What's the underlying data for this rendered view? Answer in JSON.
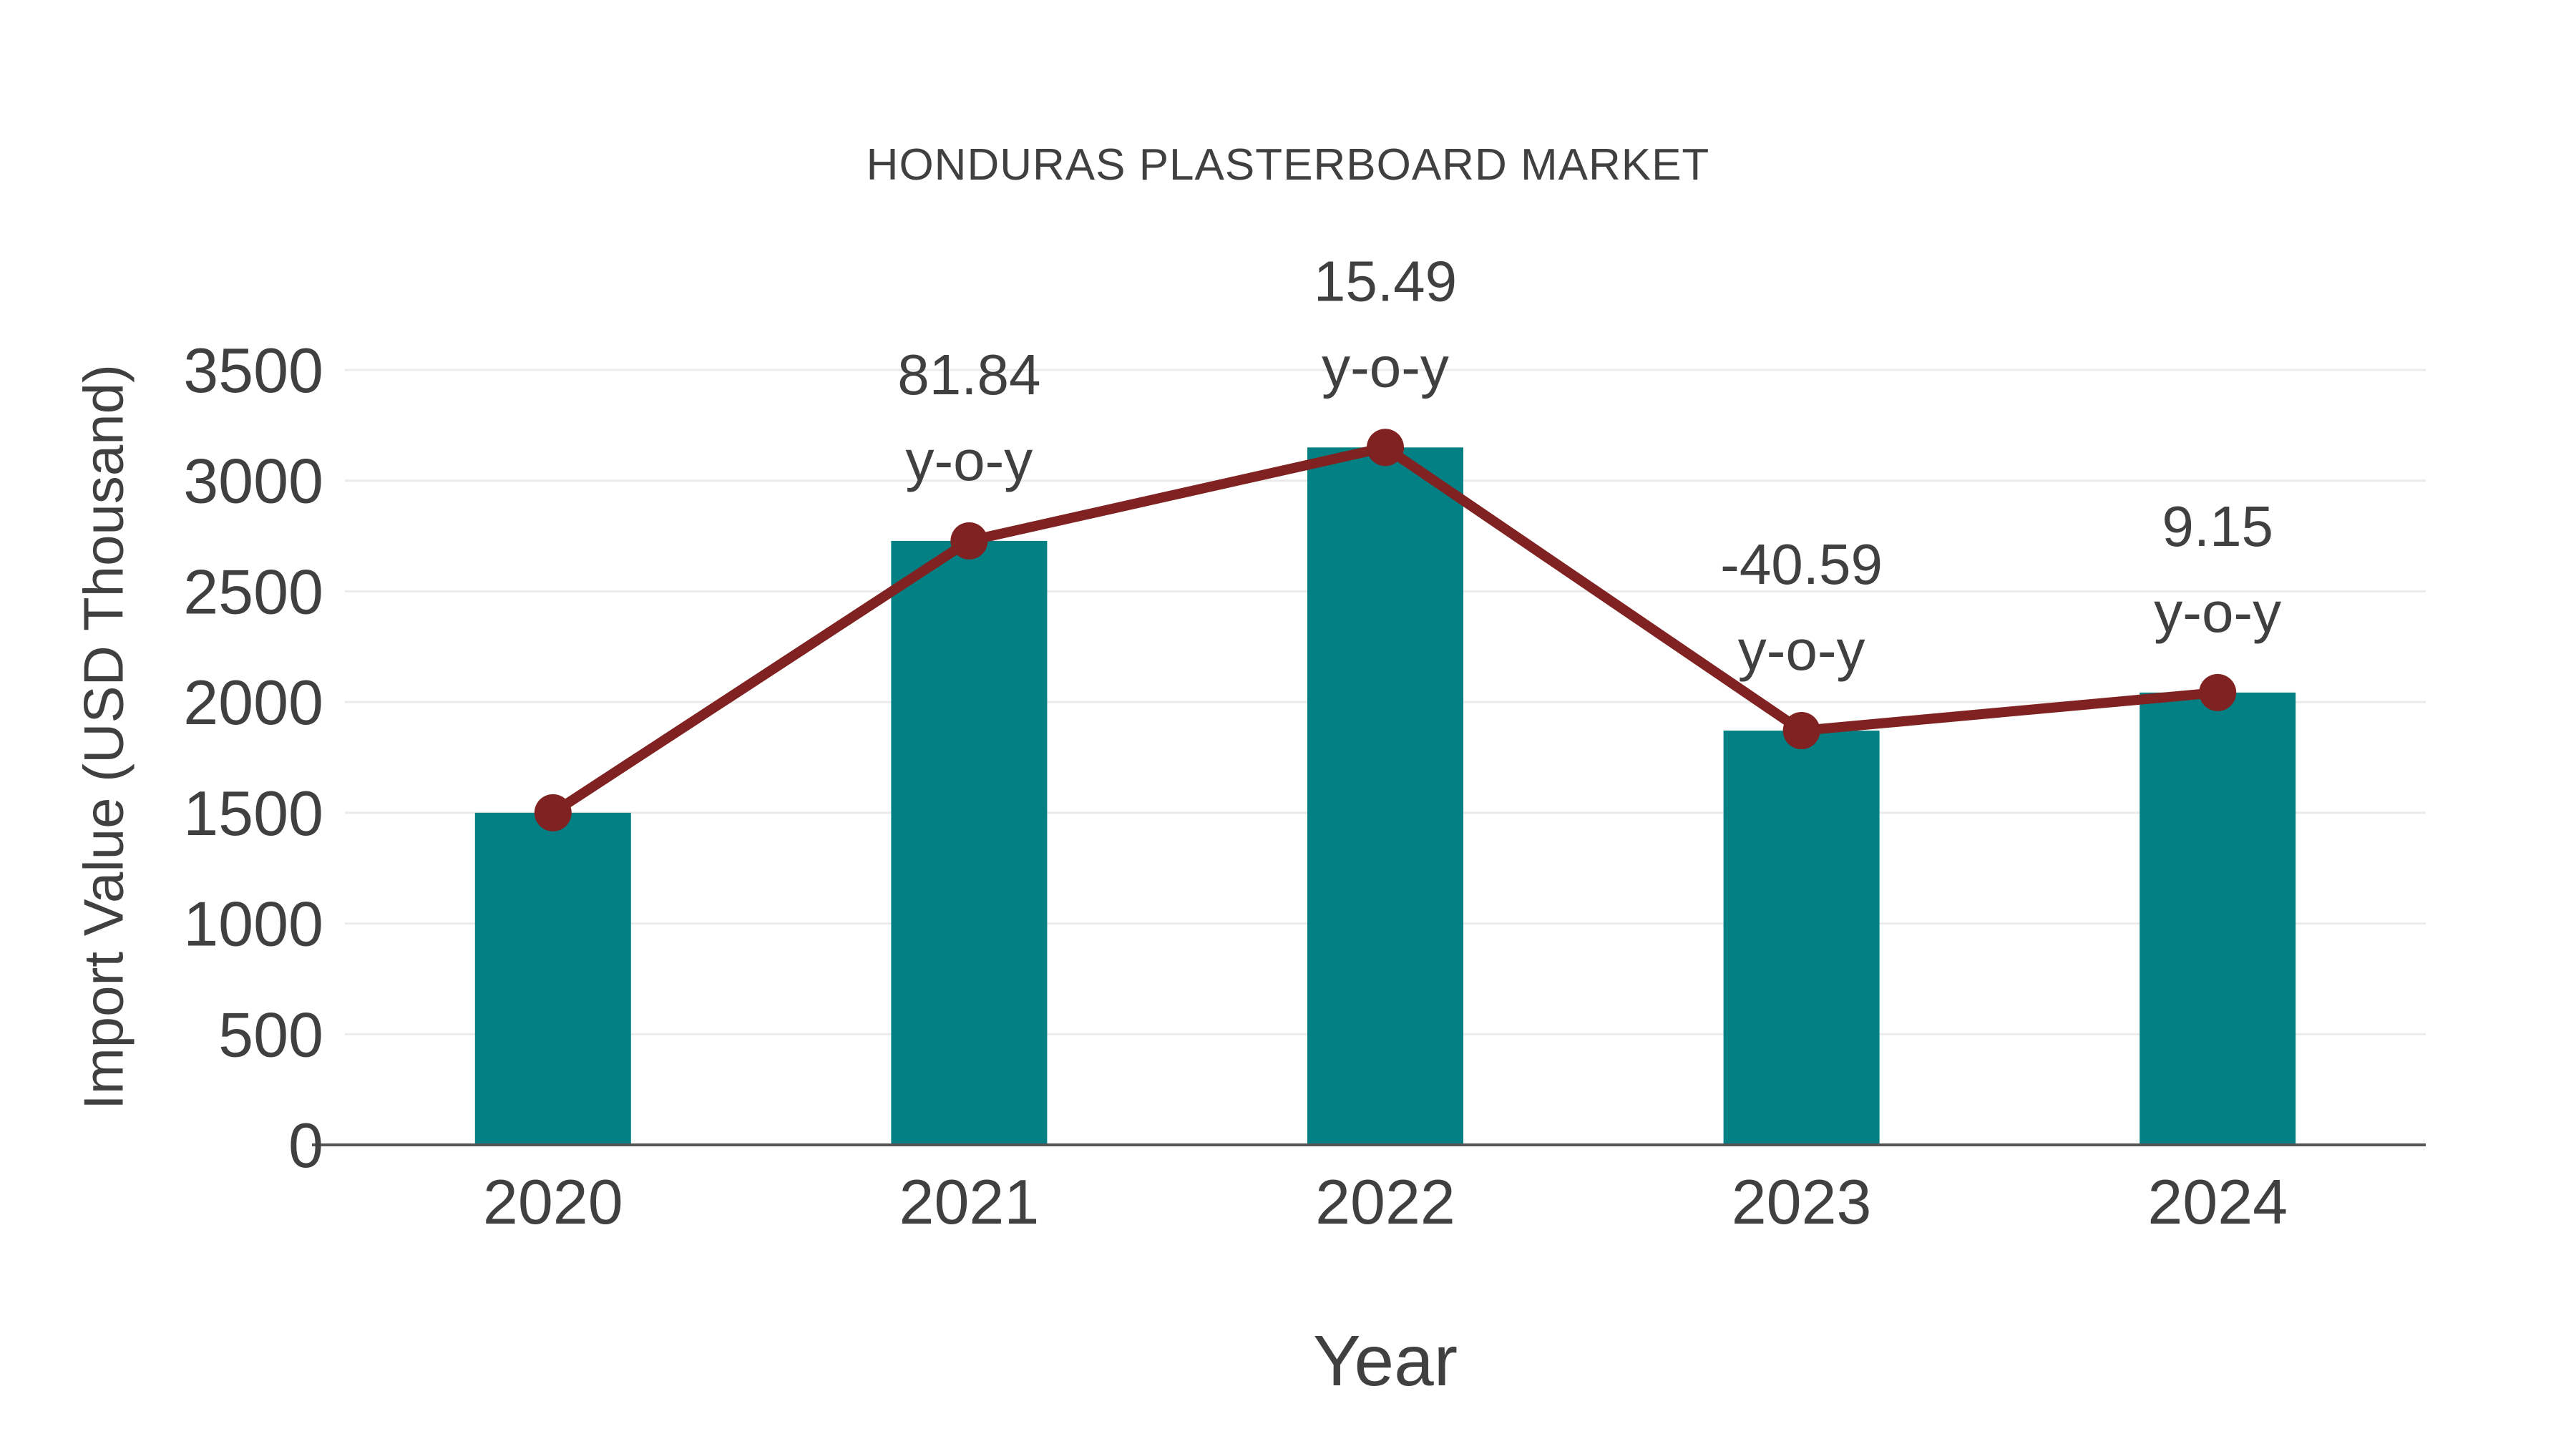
{
  "page": {
    "background_color": "#ffffff"
  },
  "chart_data": {
    "type": "bar",
    "title": "HONDURAS PLASTERBOARD MARKET",
    "xlabel": "Year",
    "ylabel": "Import Value (USD Thousand)",
    "categories": [
      "2020",
      "2021",
      "2022",
      "2023",
      "2024"
    ],
    "series": [
      {
        "name": "import-value-bars",
        "type": "bar",
        "color": "#028083",
        "values": [
          1500,
          2728,
          3150,
          1871,
          2043
        ]
      },
      {
        "name": "yoy-trend-line",
        "type": "line",
        "color": "#7f2221",
        "marker_color": "#7f2221",
        "values": [
          1500,
          2728,
          3150,
          1871,
          2043
        ]
      }
    ],
    "annotations": [
      {
        "index": 1,
        "value_label": "81.84",
        "unit_label": "y-o-y"
      },
      {
        "index": 2,
        "value_label": "15.49",
        "unit_label": "y-o-y"
      },
      {
        "index": 3,
        "value_label": "-40.59",
        "unit_label": "y-o-y"
      },
      {
        "index": 4,
        "value_label": "9.15",
        "unit_label": "y-o-y"
      }
    ],
    "ylim": [
      0,
      3500
    ],
    "yticks": [
      0,
      500,
      1000,
      1500,
      2000,
      2500,
      3000,
      3500
    ],
    "grid": true,
    "legend_position": "none",
    "colors": {
      "text": "#404040",
      "grid": "#ebebeb",
      "axis": "#555555"
    }
  }
}
